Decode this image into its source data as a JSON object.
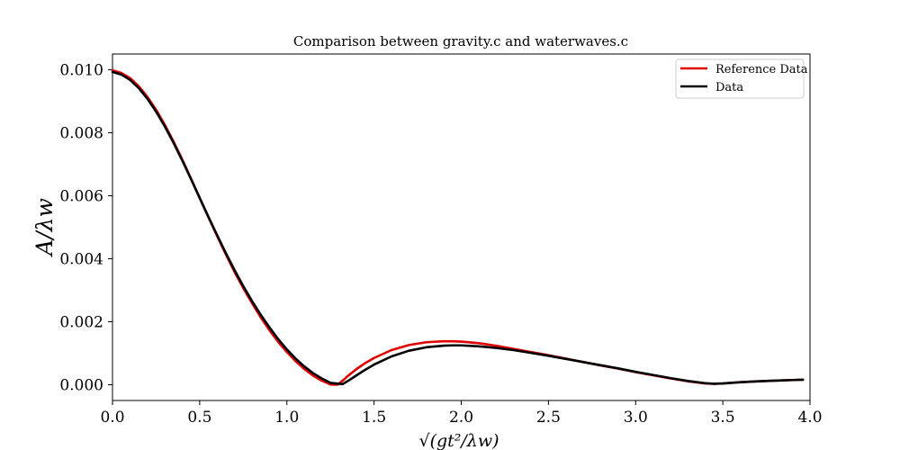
{
  "chart_data": {
    "type": "line",
    "title": "Comparison between gravity.c and waterwaves.c",
    "xlabel": "√(gt²/λw)",
    "ylabel": "A/λw",
    "xlim": [
      0.0,
      4.0
    ],
    "ylim": [
      -0.0005,
      0.0105
    ],
    "xticks": [
      0.0,
      0.5,
      1.0,
      1.5,
      2.0,
      2.5,
      3.0,
      3.5,
      4.0
    ],
    "xtick_labels": [
      "0.0",
      "0.5",
      "1.0",
      "1.5",
      "2.0",
      "2.5",
      "3.0",
      "3.5",
      "4.0"
    ],
    "yticks": [
      0.0,
      0.002,
      0.004,
      0.006,
      0.008,
      0.01
    ],
    "ytick_labels": [
      "0.000",
      "0.002",
      "0.004",
      "0.006",
      "0.008",
      "0.010"
    ],
    "grid": false,
    "legend_position": "top-right",
    "series": [
      {
        "name": "Reference Data",
        "color": "#e00000",
        "x": [
          0.0,
          0.05,
          0.1,
          0.15,
          0.2,
          0.25,
          0.3,
          0.35,
          0.4,
          0.45,
          0.5,
          0.55,
          0.6,
          0.65,
          0.7,
          0.75,
          0.8,
          0.85,
          0.9,
          0.95,
          1.0,
          1.05,
          1.1,
          1.15,
          1.2,
          1.25,
          1.29,
          1.32,
          1.35,
          1.4,
          1.45,
          1.5,
          1.6,
          1.7,
          1.8,
          1.9,
          1.95,
          2.0,
          2.1,
          2.2,
          2.3,
          2.4,
          2.5,
          2.6,
          2.7,
          2.8,
          2.9,
          3.0,
          3.1,
          3.2,
          3.3,
          3.4,
          3.45,
          3.5,
          3.6,
          3.7,
          3.8,
          3.9,
          3.96
        ],
        "values": [
          0.00998,
          0.0099,
          0.00974,
          0.00948,
          0.00914,
          0.00873,
          0.00825,
          0.00772,
          0.00715,
          0.00655,
          0.00593,
          0.00532,
          0.00472,
          0.00414,
          0.00358,
          0.00307,
          0.00259,
          0.00214,
          0.00173,
          0.00136,
          0.00104,
          0.00075,
          0.0005,
          0.00029,
          0.00013,
          1e-05,
          0.0,
          0.00013,
          0.00028,
          0.0005,
          0.00069,
          0.00085,
          0.0011,
          0.00126,
          0.00135,
          0.00138,
          0.00138,
          0.00137,
          0.00132,
          0.00124,
          0.00114,
          0.00104,
          0.00094,
          0.00083,
          0.00072,
          0.00061,
          0.00051,
          0.0004,
          0.0003,
          0.0002,
          0.00011,
          4e-05,
          3e-05,
          4e-05,
          8e-05,
          0.00011,
          0.00013,
          0.00015,
          0.00016
        ]
      },
      {
        "name": "Data",
        "color": "#000000",
        "x": [
          0.0,
          0.05,
          0.1,
          0.15,
          0.2,
          0.25,
          0.3,
          0.35,
          0.4,
          0.45,
          0.5,
          0.55,
          0.6,
          0.65,
          0.7,
          0.75,
          0.8,
          0.85,
          0.9,
          0.95,
          1.0,
          1.05,
          1.1,
          1.15,
          1.2,
          1.25,
          1.3,
          1.32,
          1.35,
          1.4,
          1.45,
          1.5,
          1.6,
          1.7,
          1.8,
          1.9,
          1.95,
          2.0,
          2.1,
          2.2,
          2.3,
          2.4,
          2.5,
          2.6,
          2.7,
          2.8,
          2.9,
          3.0,
          3.1,
          3.2,
          3.3,
          3.4,
          3.45,
          3.5,
          3.6,
          3.7,
          3.8,
          3.9,
          3.96
        ],
        "values": [
          0.00993,
          0.00985,
          0.00968,
          0.00942,
          0.00908,
          0.00867,
          0.0082,
          0.00768,
          0.00712,
          0.00653,
          0.00593,
          0.00533,
          0.00475,
          0.00418,
          0.00364,
          0.00313,
          0.00266,
          0.00222,
          0.00182,
          0.00145,
          0.00112,
          0.00083,
          0.00058,
          0.00037,
          0.0002,
          6e-05,
          3e-05,
          2e-05,
          0.00012,
          0.0003,
          0.00048,
          0.00064,
          0.0009,
          0.00108,
          0.00119,
          0.00124,
          0.00125,
          0.00125,
          0.00122,
          0.00117,
          0.0011,
          0.00101,
          0.00092,
          0.00082,
          0.00072,
          0.00062,
          0.00052,
          0.00041,
          0.00031,
          0.00021,
          0.00012,
          5e-05,
          3e-05,
          4e-05,
          8e-05,
          0.00011,
          0.00013,
          0.00015,
          0.00016
        ]
      }
    ]
  }
}
